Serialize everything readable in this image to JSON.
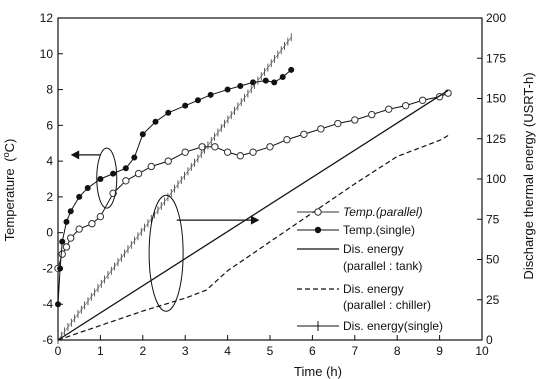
{
  "chart_data": {
    "type": "line",
    "title": "",
    "xlabel": "Time (h)",
    "ylabel_left": "Temperature",
    "ylabel_left_unit": "(°C)",
    "ylabel_left_sup": "o",
    "ylabel_left_unit_suffix": "C)",
    "ylabel_right": "Discharge thermal energy (USRT-h)",
    "xlim": [
      0,
      10
    ],
    "ylim_left": [
      -6,
      12
    ],
    "ylim_right": [
      0,
      200
    ],
    "x_ticks": [
      "0",
      "1",
      "2",
      "3",
      "4",
      "5",
      "6",
      "7",
      "8",
      "9",
      "10"
    ],
    "y_left_ticks": [
      "-6",
      "-4",
      "-2",
      "0",
      "2",
      "4",
      "6",
      "8",
      "10",
      "12"
    ],
    "y_right_ticks": [
      "0",
      "25",
      "50",
      "75",
      "100",
      "125",
      "150",
      "175",
      "200"
    ],
    "grid": false,
    "legend_placement": "bottom-right",
    "series": [
      {
        "name": "Temp.(parallel)",
        "axis": "left",
        "style": "open-circle-line",
        "x": [
          0,
          0.1,
          0.2,
          0.3,
          0.5,
          0.8,
          1.0,
          1.3,
          1.6,
          1.9,
          2.2,
          2.6,
          3.0,
          3.4,
          3.7,
          4.0,
          4.3,
          4.6,
          5.0,
          5.4,
          5.8,
          6.2,
          6.6,
          7.0,
          7.4,
          7.8,
          8.2,
          8.6,
          9.0,
          9.2
        ],
        "y": [
          -2,
          -1.2,
          -0.8,
          -0.3,
          0.2,
          0.5,
          0.9,
          2.2,
          2.9,
          3.3,
          3.7,
          4.0,
          4.5,
          4.8,
          4.8,
          4.5,
          4.3,
          4.5,
          4.8,
          5.2,
          5.5,
          5.8,
          6.1,
          6.3,
          6.6,
          6.9,
          7.1,
          7.4,
          7.6,
          7.8
        ]
      },
      {
        "name": "Temp.(single)",
        "axis": "left",
        "style": "filled-circle-line",
        "x": [
          0,
          0.05,
          0.1,
          0.2,
          0.3,
          0.5,
          0.7,
          1.0,
          1.3,
          1.6,
          1.8,
          2.0,
          2.3,
          2.6,
          3.0,
          3.3,
          3.6,
          4.0,
          4.3,
          4.6,
          4.9,
          5.1,
          5.3,
          5.5
        ],
        "y": [
          -4,
          -2,
          -0.5,
          0.6,
          1.2,
          2.0,
          2.5,
          3.0,
          3.3,
          3.6,
          4.2,
          5.5,
          6.2,
          6.7,
          7.1,
          7.4,
          7.7,
          8.0,
          8.2,
          8.4,
          8.5,
          8.4,
          8.7,
          9.1
        ]
      },
      {
        "name": "Dis. energy",
        "legend_line2": "(parallel : tank)",
        "axis": "right",
        "style": "solid",
        "x": [
          0,
          9.2
        ],
        "y": [
          0,
          155
        ]
      },
      {
        "name": "Dis. energy",
        "legend_line2": "(parallel : chiller)",
        "axis": "right",
        "style": "dashed",
        "x": [
          0,
          1,
          2,
          3,
          3.5,
          4,
          5,
          6,
          7,
          8,
          9,
          9.2
        ],
        "y": [
          0,
          9,
          18,
          26,
          31,
          43,
          61,
          79,
          97,
          114,
          124,
          127
        ]
      },
      {
        "name": "Dis. energy(single)",
        "axis": "right",
        "style": "hatched",
        "x": [
          0,
          5.5
        ],
        "y": [
          0,
          188
        ]
      }
    ],
    "annotations": [
      {
        "type": "ellipse-arrow",
        "points_to": "left",
        "target": "Temp.(single)"
      },
      {
        "type": "ellipse-arrow",
        "points_to": "right",
        "target": "Dis. energy"
      }
    ]
  }
}
